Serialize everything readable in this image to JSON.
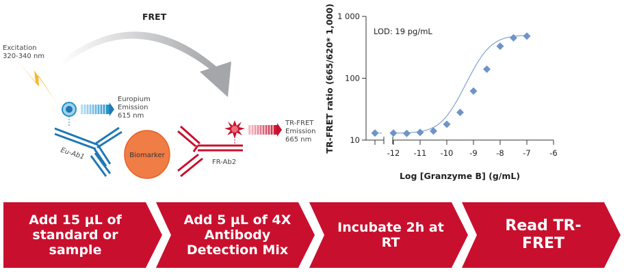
{
  "diagram": {
    "fret_label": "FRET",
    "excitation": [
      "Excitation",
      "320-340 nm"
    ],
    "europium_emission": [
      "Europium",
      "Emission",
      "615 nm"
    ],
    "tr_fret_emission": [
      "TR-FRET",
      "Emission",
      "665 nm"
    ],
    "antibody1": "Eu-Ab1",
    "antibody2": "FR-Ab2",
    "biomarker": "Biomarker",
    "colors": {
      "blue": "#1f78b4",
      "red": "#c8102e",
      "orange": "#ef7d45",
      "yellow": "#f5b731",
      "arrow_gray": "#a7a9ac"
    }
  },
  "chart_data": {
    "type": "scatter",
    "xlabel": "Log [Granzyme B] (g/mL)",
    "ylabel": "TR-FRET ratio (665/620* 1,000)",
    "annotation": "LOD: 19 pg/mL",
    "yscale": "log",
    "ylim": [
      10,
      1000
    ],
    "xlim": [
      -13,
      -6
    ],
    "xticks": [
      "-12",
      "-11",
      "-10",
      "-9",
      "-8",
      "-7",
      "-6"
    ],
    "yticks": [
      "10",
      "100",
      "1 000"
    ],
    "axis_break": true,
    "blank_point": {
      "x": "blank",
      "y": 13
    },
    "points": [
      {
        "x": -12,
        "y": 13
      },
      {
        "x": -11.5,
        "y": 12.8
      },
      {
        "x": -11,
        "y": 13.3
      },
      {
        "x": -10.5,
        "y": 14
      },
      {
        "x": -10,
        "y": 18
      },
      {
        "x": -9.5,
        "y": 28
      },
      {
        "x": -9,
        "y": 62
      },
      {
        "x": -8.5,
        "y": 140
      },
      {
        "x": -8,
        "y": 330
      },
      {
        "x": -7.5,
        "y": 450
      },
      {
        "x": -7,
        "y": 480
      }
    ],
    "marker_color": "#6f93c9",
    "curve": "4PL fit",
    "grid": false
  },
  "steps": [
    {
      "label": "Add 15 µL of standard or sample"
    },
    {
      "label": "Add 5 µL of 4X Antibody Detection Mix"
    },
    {
      "label": "Incubate 2h at RT"
    },
    {
      "label": "Read TR-FRET"
    }
  ],
  "steps_color": "#c8102e"
}
